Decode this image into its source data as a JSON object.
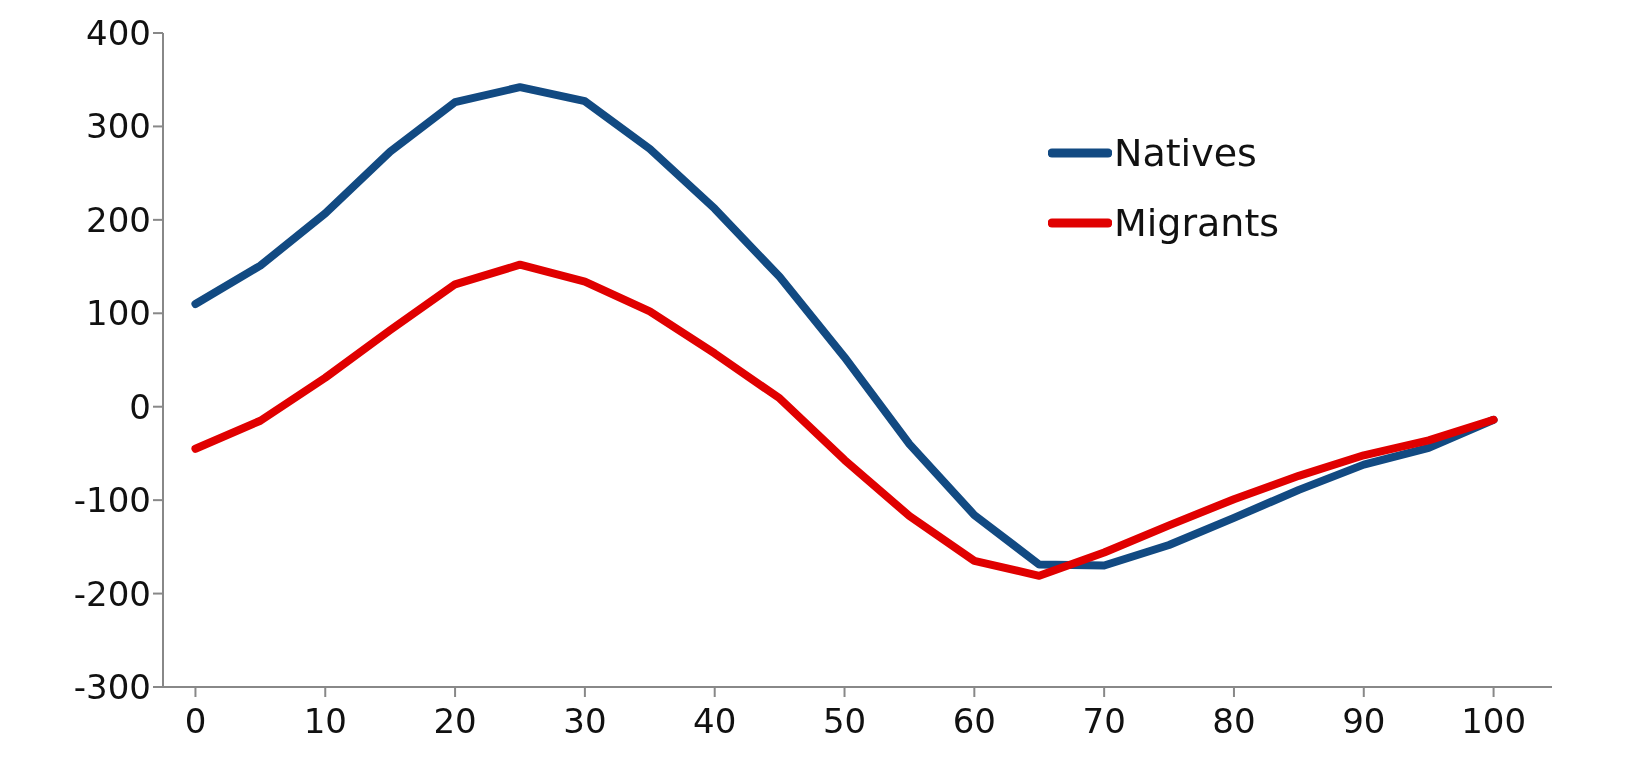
{
  "chart_data": {
    "type": "line",
    "x": [
      0,
      5,
      10,
      15,
      20,
      25,
      30,
      35,
      40,
      45,
      50,
      55,
      60,
      65,
      70,
      75,
      80,
      85,
      90,
      95,
      100
    ],
    "series": [
      {
        "name": "Natives",
        "color": "#124a82",
        "values": [
          110,
          151,
          207,
          273,
          326,
          342,
          327,
          276,
          212,
          139,
          53,
          -40,
          -116,
          -169,
          -170,
          -148,
          -119,
          -89,
          -62,
          -44,
          -14
        ]
      },
      {
        "name": "Migrants",
        "color": "#e00000",
        "values": [
          -45,
          -15,
          31,
          82,
          131,
          152,
          134,
          102,
          57,
          9,
          -57,
          -117,
          -165,
          -181,
          -156,
          -127,
          -99,
          -74,
          -52,
          -36,
          -14
        ]
      }
    ],
    "xlim": [
      -2.5,
      104.5
    ],
    "xticks": [
      0,
      10,
      20,
      30,
      40,
      50,
      60,
      70,
      80,
      90,
      100
    ],
    "ylim": [
      -300,
      400
    ],
    "yticks": [
      -300,
      -200,
      -100,
      0,
      100,
      200,
      300,
      400
    ],
    "grid": false,
    "legend": "top right",
    "marker": "none",
    "line_style": "solid"
  }
}
